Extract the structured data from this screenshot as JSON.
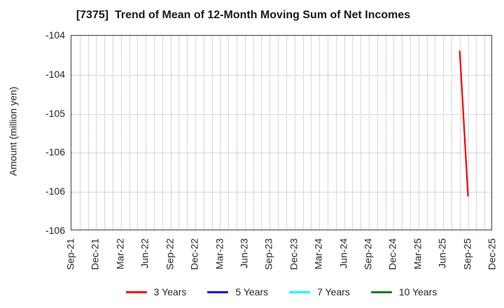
{
  "chart_data": {
    "type": "line",
    "title": "[7375]  Trend of Mean of 12-Month Moving Sum of Net Incomes",
    "ylabel": "Amount (million yen)",
    "xlabel": "",
    "ylim": [
      -106.5,
      -104.0
    ],
    "y_ticks": [
      {
        "value": -104.0,
        "label": "-104"
      },
      {
        "value": -104.5,
        "label": "-104"
      },
      {
        "value": -105.0,
        "label": "-105"
      },
      {
        "value": -105.5,
        "label": "-106"
      },
      {
        "value": -106.0,
        "label": "-106"
      },
      {
        "value": -106.5,
        "label": "-106"
      }
    ],
    "x_tick_labels": [
      "Sep-21",
      "Dec-21",
      "Mar-22",
      "Jun-22",
      "Sep-22",
      "Dec-22",
      "Mar-23",
      "Jun-23",
      "Sep-23",
      "Dec-23",
      "Mar-24",
      "Jun-24",
      "Sep-24",
      "Dec-24",
      "Mar-25",
      "Jun-25",
      "Sep-25",
      "Dec-25"
    ],
    "x_axis": {
      "start": "Sep-21",
      "end": "Dec-25",
      "months_total": 51,
      "tick_every_months": 3,
      "minor_grid": "monthly"
    },
    "grid": {
      "style": "dotted",
      "color": "#b0b0b0"
    },
    "spine_color": "#3c3c3c",
    "legend": {
      "position": "bottom-center",
      "entries": [
        {
          "label": "3 Years",
          "color": "#ff0000"
        },
        {
          "label": "5 Years",
          "color": "#0000ff"
        },
        {
          "label": "7 Years",
          "color": "#00ffff"
        },
        {
          "label": "10 Years",
          "color": "#008000"
        }
      ]
    },
    "series": [
      {
        "name": "3 Years",
        "color": "#ff0000",
        "points": [
          {
            "x": "Aug-25",
            "month_index": 47,
            "value": -104.2
          },
          {
            "x": "Sep-25",
            "month_index": 48,
            "value": -106.05
          }
        ]
      },
      {
        "name": "5 Years",
        "color": "#0000ff",
        "points": []
      },
      {
        "name": "7 Years",
        "color": "#00ffff",
        "points": []
      },
      {
        "name": "10 Years",
        "color": "#008000",
        "points": []
      }
    ]
  }
}
